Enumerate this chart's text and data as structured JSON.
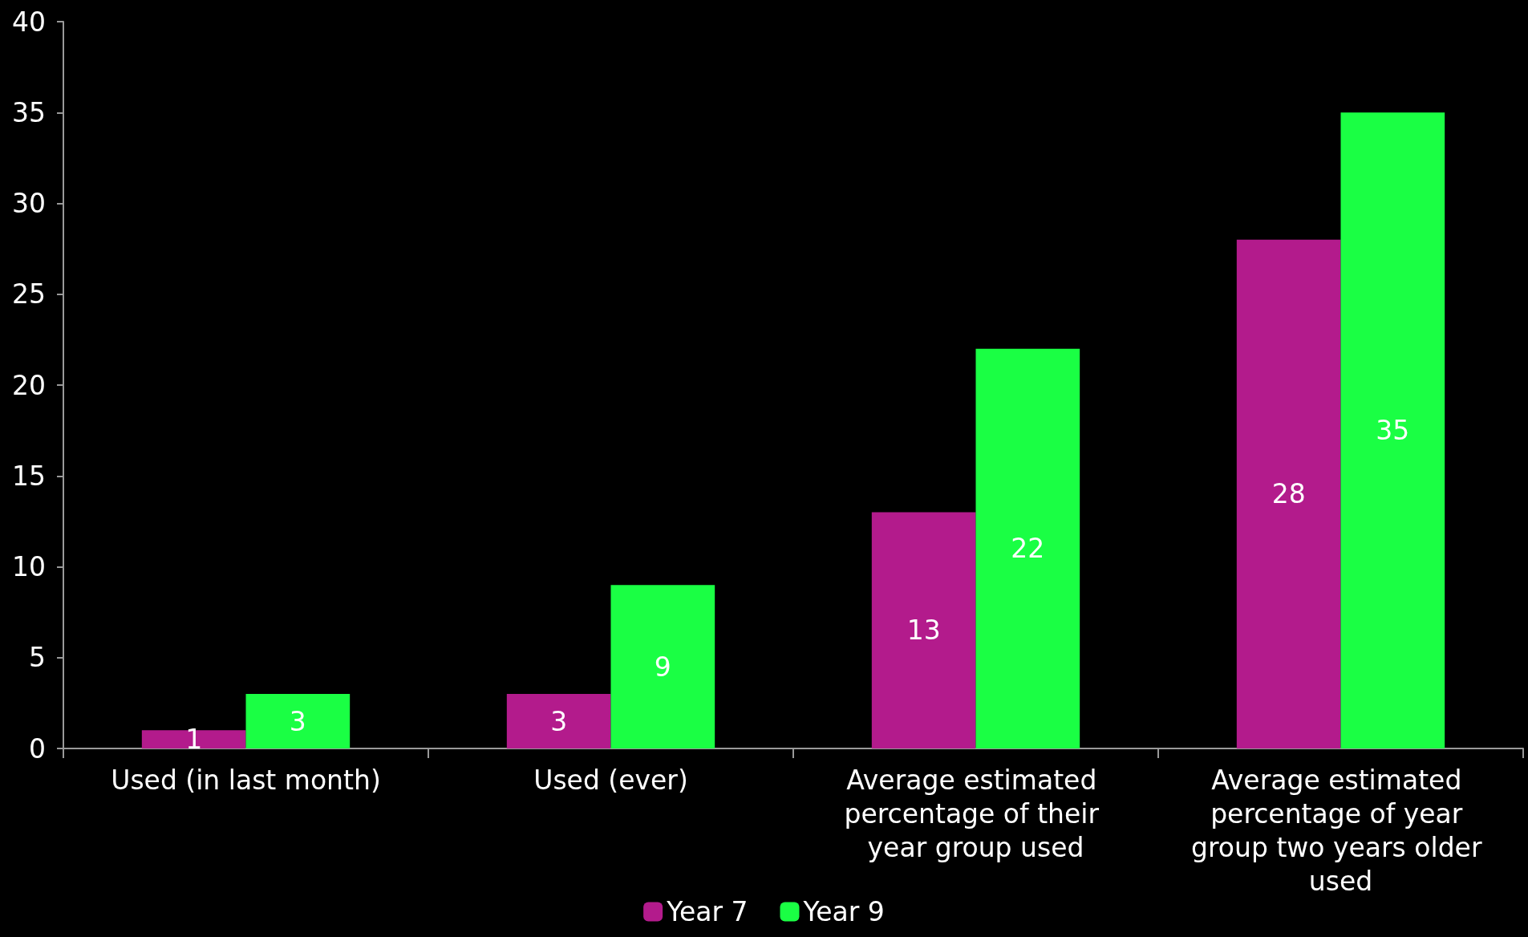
{
  "chart_data": {
    "type": "bar",
    "categories": [
      "Used (in last month)",
      "Used (ever)",
      "Average estimated percentage of their year group used",
      "Average estimated percentage of year group two years older used"
    ],
    "series": [
      {
        "name": "Year 7",
        "color": "#b31b8c",
        "values": [
          1,
          3,
          13,
          28
        ]
      },
      {
        "name": "Year 9",
        "color": "#1aff44",
        "values": [
          3,
          9,
          22,
          35
        ]
      }
    ],
    "ylim": [
      0,
      40
    ],
    "yticks": [
      0,
      5,
      10,
      15,
      20,
      25,
      30,
      35,
      40
    ],
    "data_labels": true,
    "grid": false,
    "legend": "bottom"
  }
}
